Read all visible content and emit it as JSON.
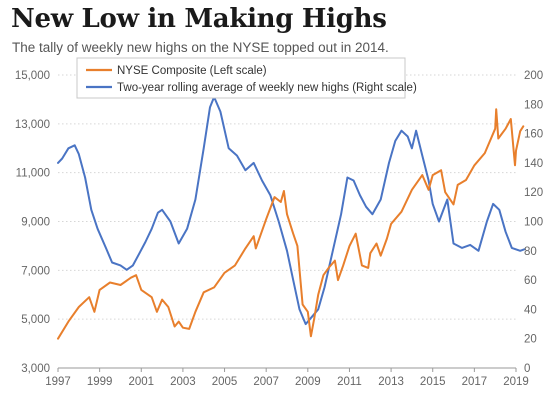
{
  "chart_data": {
    "type": "line",
    "title": "New Low in Making Highs",
    "subtitle": "The tally of weekly new highs on the NYSE topped out in 2014.",
    "x_ticks": [
      "1997",
      "1999",
      "2001",
      "2003",
      "2005",
      "2007",
      "2009",
      "2011",
      "2013",
      "2015",
      "2017",
      "2019"
    ],
    "xlim": [
      1997,
      2019
    ],
    "left_axis": {
      "ticks": [
        "3,000",
        "5,000",
        "7,000",
        "9,000",
        "11,000",
        "13,000",
        "15,000"
      ],
      "ylim": [
        3000,
        15000
      ]
    },
    "right_axis": {
      "ticks": [
        "0",
        "20",
        "40",
        "60",
        "80",
        "100",
        "120",
        "140",
        "160",
        "180",
        "200"
      ],
      "ylim": [
        0,
        200
      ]
    },
    "grid": true,
    "legend_position": "top-left",
    "series": [
      {
        "name": "NYSE Composite (Left scale)",
        "axis": "left",
        "color": "#e87f2c",
        "points": [
          [
            1997.0,
            4200
          ],
          [
            1997.5,
            4900
          ],
          [
            1998.0,
            5500
          ],
          [
            1998.5,
            5900
          ],
          [
            1998.75,
            5300
          ],
          [
            1999.0,
            6200
          ],
          [
            1999.5,
            6500
          ],
          [
            2000.0,
            6400
          ],
          [
            2000.5,
            6700
          ],
          [
            2000.75,
            6800
          ],
          [
            2001.0,
            6200
          ],
          [
            2001.5,
            5900
          ],
          [
            2001.75,
            5300
          ],
          [
            2002.0,
            5800
          ],
          [
            2002.3,
            5500
          ],
          [
            2002.6,
            4700
          ],
          [
            2002.8,
            4900
          ],
          [
            2003.0,
            4650
          ],
          [
            2003.3,
            4600
          ],
          [
            2003.6,
            5300
          ],
          [
            2004.0,
            6100
          ],
          [
            2004.5,
            6300
          ],
          [
            2005.0,
            6900
          ],
          [
            2005.5,
            7200
          ],
          [
            2006.0,
            7900
          ],
          [
            2006.4,
            8400
          ],
          [
            2006.5,
            7900
          ],
          [
            2007.0,
            9100
          ],
          [
            2007.4,
            10000
          ],
          [
            2007.7,
            9800
          ],
          [
            2007.85,
            10250
          ],
          [
            2008.0,
            9300
          ],
          [
            2008.3,
            8500
          ],
          [
            2008.5,
            8000
          ],
          [
            2008.75,
            5600
          ],
          [
            2009.0,
            5300
          ],
          [
            2009.15,
            4300
          ],
          [
            2009.3,
            5000
          ],
          [
            2009.5,
            6000
          ],
          [
            2009.75,
            6800
          ],
          [
            2010.0,
            7100
          ],
          [
            2010.3,
            7400
          ],
          [
            2010.45,
            6600
          ],
          [
            2010.7,
            7200
          ],
          [
            2011.0,
            8000
          ],
          [
            2011.3,
            8500
          ],
          [
            2011.6,
            7200
          ],
          [
            2011.9,
            7100
          ],
          [
            2012.0,
            7700
          ],
          [
            2012.3,
            8100
          ],
          [
            2012.5,
            7600
          ],
          [
            2012.8,
            8300
          ],
          [
            2013.0,
            8900
          ],
          [
            2013.5,
            9400
          ],
          [
            2014.0,
            10300
          ],
          [
            2014.5,
            10900
          ],
          [
            2014.8,
            10300
          ],
          [
            2015.0,
            10900
          ],
          [
            2015.4,
            11100
          ],
          [
            2015.6,
            10200
          ],
          [
            2016.0,
            9700
          ],
          [
            2016.2,
            10500
          ],
          [
            2016.6,
            10700
          ],
          [
            2017.0,
            11300
          ],
          [
            2017.5,
            11800
          ],
          [
            2018.0,
            12800
          ],
          [
            2018.05,
            13600
          ],
          [
            2018.15,
            12400
          ],
          [
            2018.5,
            12800
          ],
          [
            2018.75,
            13200
          ],
          [
            2018.95,
            11300
          ],
          [
            2019.0,
            11900
          ],
          [
            2019.2,
            12700
          ],
          [
            2019.35,
            12900
          ]
        ]
      },
      {
        "name": "Two-year rolling average of weekly new highs (Right scale)",
        "axis": "right",
        "color": "#4a74c4",
        "points": [
          [
            1997.0,
            140
          ],
          [
            1997.2,
            143
          ],
          [
            1997.5,
            150
          ],
          [
            1997.8,
            152
          ],
          [
            1998.0,
            146
          ],
          [
            1998.3,
            130
          ],
          [
            1998.6,
            108
          ],
          [
            1998.9,
            95
          ],
          [
            1999.3,
            82
          ],
          [
            1999.6,
            72
          ],
          [
            2000.0,
            70
          ],
          [
            2000.3,
            67
          ],
          [
            2000.6,
            70
          ],
          [
            2000.9,
            78
          ],
          [
            2001.2,
            86
          ],
          [
            2001.5,
            95
          ],
          [
            2001.8,
            106
          ],
          [
            2002.0,
            108
          ],
          [
            2002.4,
            100
          ],
          [
            2002.8,
            85
          ],
          [
            2003.2,
            95
          ],
          [
            2003.6,
            115
          ],
          [
            2004.0,
            150
          ],
          [
            2004.3,
            178
          ],
          [
            2004.5,
            185
          ],
          [
            2004.8,
            175
          ],
          [
            2005.2,
            150
          ],
          [
            2005.6,
            145
          ],
          [
            2006.0,
            135
          ],
          [
            2006.4,
            140
          ],
          [
            2006.8,
            128
          ],
          [
            2007.2,
            118
          ],
          [
            2007.6,
            100
          ],
          [
            2008.0,
            80
          ],
          [
            2008.3,
            60
          ],
          [
            2008.6,
            40
          ],
          [
            2008.9,
            30
          ],
          [
            2009.2,
            35
          ],
          [
            2009.5,
            40
          ],
          [
            2009.8,
            55
          ],
          [
            2010.2,
            80
          ],
          [
            2010.6,
            105
          ],
          [
            2010.9,
            130
          ],
          [
            2011.2,
            128
          ],
          [
            2011.5,
            118
          ],
          [
            2011.8,
            110
          ],
          [
            2012.1,
            105
          ],
          [
            2012.5,
            115
          ],
          [
            2012.9,
            140
          ],
          [
            2013.2,
            155
          ],
          [
            2013.5,
            162
          ],
          [
            2013.8,
            158
          ],
          [
            2014.0,
            150
          ],
          [
            2014.2,
            162
          ],
          [
            2014.5,
            145
          ],
          [
            2014.8,
            128
          ],
          [
            2015.0,
            112
          ],
          [
            2015.3,
            100
          ],
          [
            2015.7,
            115
          ],
          [
            2016.0,
            85
          ],
          [
            2016.4,
            82
          ],
          [
            2016.8,
            84
          ],
          [
            2017.2,
            80
          ],
          [
            2017.6,
            100
          ],
          [
            2017.9,
            112
          ],
          [
            2018.2,
            108
          ],
          [
            2018.5,
            93
          ],
          [
            2018.8,
            82
          ],
          [
            2019.2,
            80
          ],
          [
            2019.4,
            81
          ]
        ]
      }
    ]
  }
}
